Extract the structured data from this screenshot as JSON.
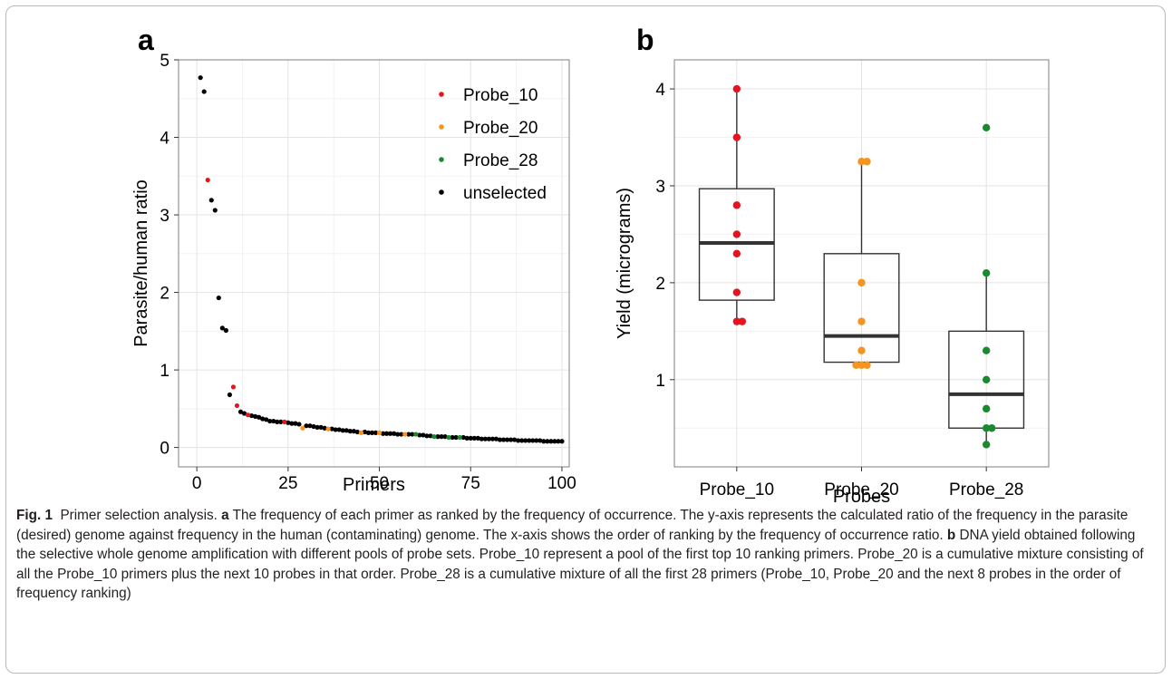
{
  "chart_data": [
    {
      "type": "scatter",
      "panel": "a",
      "xlabel": "Primers",
      "ylabel": "Parasite/human ratio",
      "xlim": [
        -5,
        102
      ],
      "ylim": [
        -0.25,
        5
      ],
      "xticks": [
        0,
        25,
        50,
        75,
        100
      ],
      "yticks": [
        0,
        1,
        2,
        3,
        4,
        5
      ],
      "legend_position": "top-right",
      "grid": true,
      "series": [
        {
          "name": "Probe_10",
          "color": "#e8131c",
          "points": [
            [
              3,
              3.45
            ],
            [
              10,
              0.78
            ],
            [
              11,
              0.54
            ],
            [
              14,
              0.42
            ],
            [
              24,
              0.33
            ]
          ]
        },
        {
          "name": "Probe_20",
          "color": "#f7941e",
          "points": [
            [
              29,
              0.25
            ],
            [
              36,
              0.24
            ],
            [
              45,
              0.19
            ],
            [
              50,
              0.19
            ],
            [
              57,
              0.17
            ]
          ]
        },
        {
          "name": "Probe_28",
          "color": "#1a8a2e",
          "points": [
            [
              60,
              0.17
            ],
            [
              65,
              0.14
            ],
            [
              69,
              0.13
            ],
            [
              72,
              0.13
            ]
          ]
        },
        {
          "name": "unselected",
          "color": "#000000",
          "points": [
            [
              1,
              4.77
            ],
            [
              2,
              4.59
            ],
            [
              4,
              3.19
            ],
            [
              5,
              3.06
            ],
            [
              6,
              1.93
            ],
            [
              7,
              1.54
            ],
            [
              8,
              1.51
            ],
            [
              9,
              0.68
            ],
            [
              12,
              0.46
            ],
            [
              13,
              0.44
            ],
            [
              15,
              0.41
            ],
            [
              16,
              0.4
            ],
            [
              17,
              0.39
            ],
            [
              18,
              0.37
            ],
            [
              19,
              0.36
            ],
            [
              20,
              0.34
            ],
            [
              21,
              0.34
            ],
            [
              22,
              0.33
            ],
            [
              23,
              0.33
            ],
            [
              25,
              0.32
            ],
            [
              26,
              0.31
            ],
            [
              27,
              0.31
            ],
            [
              28,
              0.3
            ],
            [
              30,
              0.28
            ],
            [
              31,
              0.28
            ],
            [
              32,
              0.27
            ],
            [
              33,
              0.26
            ],
            [
              34,
              0.26
            ],
            [
              35,
              0.25
            ],
            [
              37,
              0.24
            ],
            [
              38,
              0.23
            ],
            [
              39,
              0.23
            ],
            [
              40,
              0.22
            ],
            [
              41,
              0.22
            ],
            [
              42,
              0.21
            ],
            [
              43,
              0.21
            ],
            [
              44,
              0.2
            ],
            [
              46,
              0.2
            ],
            [
              47,
              0.19
            ],
            [
              48,
              0.19
            ],
            [
              49,
              0.19
            ],
            [
              51,
              0.18
            ],
            [
              52,
              0.18
            ],
            [
              53,
              0.18
            ],
            [
              54,
              0.18
            ],
            [
              55,
              0.17
            ],
            [
              56,
              0.17
            ],
            [
              58,
              0.17
            ],
            [
              59,
              0.17
            ],
            [
              61,
              0.16
            ],
            [
              62,
              0.16
            ],
            [
              63,
              0.15
            ],
            [
              64,
              0.15
            ],
            [
              66,
              0.14
            ],
            [
              67,
              0.14
            ],
            [
              68,
              0.14
            ],
            [
              70,
              0.13
            ],
            [
              71,
              0.13
            ],
            [
              73,
              0.13
            ],
            [
              74,
              0.12
            ],
            [
              75,
              0.12
            ],
            [
              76,
              0.12
            ],
            [
              77,
              0.12
            ],
            [
              78,
              0.11
            ],
            [
              79,
              0.11
            ],
            [
              80,
              0.11
            ],
            [
              81,
              0.11
            ],
            [
              82,
              0.11
            ],
            [
              83,
              0.1
            ],
            [
              84,
              0.1
            ],
            [
              85,
              0.1
            ],
            [
              86,
              0.1
            ],
            [
              87,
              0.1
            ],
            [
              88,
              0.09
            ],
            [
              89,
              0.09
            ],
            [
              90,
              0.09
            ],
            [
              91,
              0.09
            ],
            [
              92,
              0.09
            ],
            [
              93,
              0.09
            ],
            [
              94,
              0.09
            ],
            [
              95,
              0.08
            ],
            [
              96,
              0.08
            ],
            [
              97,
              0.08
            ],
            [
              98,
              0.08
            ],
            [
              99,
              0.08
            ],
            [
              100,
              0.08
            ]
          ]
        }
      ]
    },
    {
      "type": "box",
      "panel": "b",
      "xlabel": "Probes",
      "ylabel": "Yield (micrograms)",
      "ylim": [
        0.1,
        4.3
      ],
      "yticks": [
        1,
        2,
        3,
        4
      ],
      "grid": true,
      "categories": [
        "Probe_10",
        "Probe_20",
        "Probe_28"
      ],
      "boxes": [
        {
          "category": "Probe_10",
          "color": "#e8131c",
          "q1": 1.82,
          "median": 2.41,
          "q3": 2.97,
          "whisker_low": 1.6,
          "whisker_high": 4.0,
          "points": [
            4.0,
            3.5,
            2.8,
            2.5,
            2.3,
            1.9,
            1.6,
            1.6
          ]
        },
        {
          "category": "Probe_20",
          "color": "#f7941e",
          "q1": 1.18,
          "median": 1.45,
          "q3": 2.3,
          "whisker_low": 1.13,
          "whisker_high": 3.27,
          "points": [
            3.25,
            3.25,
            2.0,
            1.6,
            1.3,
            1.15,
            1.15,
            1.15
          ]
        },
        {
          "category": "Probe_28",
          "color": "#1a8a2e",
          "q1": 0.5,
          "median": 0.85,
          "q3": 1.5,
          "whisker_low": 0.33,
          "whisker_high": 2.1,
          "points": [
            3.6,
            2.1,
            1.3,
            1.0,
            0.7,
            0.5,
            0.5,
            0.33
          ]
        }
      ]
    }
  ],
  "panels": {
    "a_label": "a",
    "b_label": "b"
  },
  "caption": {
    "fig_label": "Fig. 1",
    "title": "Primer selection analysis.",
    "a_label": "a",
    "a_text": "The frequency of each primer as ranked by the frequency of occurrence. The y-axis represents the calculated ratio of the frequency in the parasite (desired) genome against frequency in the human (contaminating) genome. The x-axis shows the order of ranking by the frequency of occurrence ratio.",
    "b_label": "b",
    "b_text": "DNA yield obtained following the selective whole genome amplification with different pools of probe sets. Probe_10 represent a pool of the first top 10 ranking primers. Probe_20 is a cumulative mixture consisting of all the Probe_10 primers plus the next 10 probes in that order. Probe_28 is a cumulative mixture of all the first 28 primers (Probe_10, Probe_20 and the next 8 probes in the order of frequency ranking)"
  }
}
